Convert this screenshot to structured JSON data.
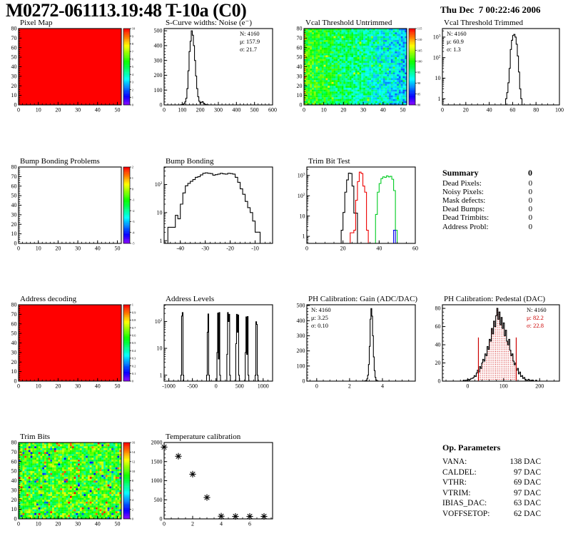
{
  "header": {
    "title": "M0272-061113.19:48 T-10a (C0)",
    "datetime": "Thu Dec  7 00:22:46 2006"
  },
  "summary": {
    "title": "Summary",
    "value": "0",
    "rows": [
      {
        "label": "Dead Pixels:",
        "value": "0"
      },
      {
        "label": "Noisy Pixels:",
        "value": "0"
      },
      {
        "label": "Mask defects:",
        "value": "0"
      },
      {
        "label": "Dead Bumps:",
        "value": "0"
      },
      {
        "label": "Dead Trimbits:",
        "value": "0"
      },
      {
        "label": "Address Probl:",
        "value": "0"
      }
    ]
  },
  "op_parameters": {
    "title": "Op. Parameters",
    "rows": [
      {
        "label": "VANA:",
        "value": "138 DAC"
      },
      {
        "label": "CALDEL:",
        "value": "97 DAC"
      },
      {
        "label": "VTHR:",
        "value": "69 DAC"
      },
      {
        "label": "VTRIM:",
        "value": "97 DAC"
      },
      {
        "label": "IBIAS_DAC:",
        "value": "63 DAC"
      },
      {
        "label": "VOFFSETOP:",
        "value": "62 DAC"
      }
    ]
  },
  "chart_data": [
    {
      "name": "pixel-map",
      "title": "Pixel Map",
      "type": "heatmap",
      "col": 0,
      "fill": "uniform",
      "x": {
        "min": 0,
        "max": 52,
        "major": [
          0,
          10,
          20,
          30,
          40,
          50
        ],
        "minor": 2
      },
      "y": {
        "min": 0,
        "max": 80,
        "major": [
          0,
          10,
          20,
          30,
          40,
          50,
          60,
          70,
          80
        ],
        "minor": 2
      },
      "z": {
        "min": 0,
        "max": 10,
        "step": 1
      },
      "uniform_value": 10
    },
    {
      "name": "scurve-noise",
      "title": "S-Curve widths: Noise (e⁻)",
      "type": "hist",
      "col": 1,
      "x": {
        "min": 0,
        "max": 600,
        "major": [
          0,
          100,
          200,
          300,
          400,
          500,
          600
        ],
        "minor": 20
      },
      "y": {
        "min": 0,
        "max": 515,
        "major": [
          0,
          100,
          200,
          300,
          400,
          500
        ],
        "minor": 20
      },
      "stats": {
        "pos": "tr",
        "lines": [
          {
            "t": "N: 4160",
            "c": "#000000"
          },
          {
            "t": "μ: 157.9",
            "c": "#000000"
          },
          {
            "t": "σ: 21.7",
            "c": "#000000"
          }
        ]
      },
      "series": [
        {
          "color": "#000000",
          "segments": [
            {
              "x0": 90,
              "bw": 6,
              "counts": [
                1,
                2,
                4,
                8,
                20,
                45,
                110,
                230,
                360,
                430,
                500,
                470,
                400,
                300,
                195,
                110,
                55,
                25,
                12,
                18,
                22,
                12,
                6,
                3,
                1,
                1
              ]
            }
          ]
        }
      ]
    },
    {
      "name": "vcal-untrimmed",
      "title": "Vcal Threshold Untrimmed",
      "type": "heatmap",
      "col": 2,
      "fill": "noise",
      "seed": 20061207,
      "x": {
        "min": 0,
        "max": 52,
        "major": [
          0,
          10,
          20,
          30,
          40,
          50
        ],
        "minor": 2
      },
      "y": {
        "min": 0,
        "max": 80,
        "major": [
          0,
          10,
          20,
          30,
          40,
          50,
          60,
          70,
          80
        ],
        "minor": 2
      },
      "z": {
        "min": 80,
        "max": 115,
        "step": 5
      }
    },
    {
      "name": "vcal-trimmed",
      "title": "Vcal Threshold Trimmed",
      "type": "hist",
      "col": 3,
      "x": {
        "min": 0,
        "max": 100,
        "major": [
          0,
          20,
          40,
          60,
          80,
          100
        ],
        "minor": 5
      },
      "y": {
        "log": true,
        "min": 0.5,
        "max": 2600
      },
      "stats": {
        "pos": "tl",
        "lines": [
          {
            "t": "N: 4160",
            "c": "#000000"
          },
          {
            "t": "μ: 60.9",
            "c": "#000000"
          },
          {
            "t": "σ: 1.3",
            "c": "#000000"
          }
        ]
      },
      "series": [
        {
          "color": "#000000",
          "segments": [
            {
              "x0": 54,
              "bw": 1,
              "counts": [
                1,
                2,
                6,
                30,
                250,
                700,
                1200,
                1350,
                1000,
                450,
                120,
                20,
                3,
                1
              ]
            }
          ]
        }
      ]
    },
    {
      "name": "bump-problems",
      "title": "Bump Bonding Problems",
      "type": "heatmap",
      "col": 0,
      "fill": "none",
      "x": {
        "min": 0,
        "max": 52,
        "major": [
          0,
          10,
          20,
          30,
          40,
          50
        ],
        "minor": 2
      },
      "y": {
        "min": 0,
        "max": 80,
        "major": [
          0,
          10,
          20,
          30,
          40,
          50,
          60,
          70,
          80
        ],
        "minor": 2
      },
      "z": {
        "min": -5,
        "max": 2,
        "step": 1
      }
    },
    {
      "name": "bump-bonding",
      "title": "Bump Bonding",
      "type": "hist",
      "col": 1,
      "x": {
        "min": -46.5,
        "max": -3,
        "major": [
          -40,
          -30,
          -20,
          -10
        ],
        "minor": 2
      },
      "y": {
        "log": true,
        "min": 0.8,
        "max": 420
      },
      "series": [
        {
          "color": "#000000",
          "segments": [
            {
              "x0": -45,
              "bw": 1,
              "counts": [
                3,
                3,
                3,
                8,
                6,
                20,
                50,
                90,
                110,
                130,
                150,
                180,
                190,
                220,
                250,
                260,
                250,
                245,
                215,
                225,
                235,
                250,
                240,
                235,
                250,
                245,
                235,
                180,
                120,
                70,
                45,
                25,
                15,
                10,
                5,
                2,
                2
              ]
            }
          ]
        }
      ]
    },
    {
      "name": "trim-bit-test",
      "title": "Trim Bit Test",
      "type": "hist",
      "col": 2,
      "x": {
        "min": 0,
        "max": 60,
        "major": [
          0,
          20,
          40,
          60
        ],
        "minor": 5
      },
      "y": {
        "log": true,
        "min": 0.45,
        "max": 2600
      },
      "series": [
        {
          "color": "#000000",
          "baseline": [
            0,
            60
          ],
          "segments": [
            {
              "x0": 19,
              "bw": 1,
              "counts": [
                2,
                15,
                150,
                600,
                1300,
                1250,
                300,
                14,
                14
              ]
            }
          ]
        },
        {
          "color": "#ee0000",
          "baseline": [
            0,
            60
          ],
          "segments": [
            {
              "x0": 24,
              "bw": 1,
              "counts": [
                1.5,
                1.5,
                2,
                60,
                500,
                1450,
                1250,
                300,
                150,
                2
              ]
            }
          ]
        },
        {
          "color": "#00cc22",
          "baseline": [
            0,
            60
          ],
          "segments": [
            {
              "x0": 38,
              "bw": 1,
              "counts": [
                12,
                150,
                400,
                700,
                850,
                800,
                950,
                850,
                900,
                650,
                180,
                2
              ]
            }
          ]
        },
        {
          "color": "#0000ee",
          "segments": [
            {
              "x0": 48,
              "bw": 1,
              "counts": [
                2
              ]
            }
          ]
        }
      ]
    },
    {
      "name": "address-decoding",
      "title": "Address decoding",
      "type": "heatmap",
      "col": 0,
      "fill": "uniform",
      "x": {
        "min": 0,
        "max": 52,
        "major": [
          0,
          10,
          20,
          30,
          40,
          50
        ],
        "minor": 2
      },
      "y": {
        "min": 0,
        "max": 80,
        "major": [
          0,
          10,
          20,
          30,
          40,
          50,
          60,
          70,
          80
        ],
        "minor": 2
      },
      "z": {
        "min": 0,
        "max": 1,
        "step": 0.1
      },
      "uniform_value": 1
    },
    {
      "name": "address-levels",
      "title": "Address Levels",
      "type": "hist",
      "col": 1,
      "x": {
        "min": -1100,
        "max": 1200,
        "major": [
          -1000,
          -500,
          0,
          500,
          1000
        ],
        "minor": 100
      },
      "y": {
        "log": true,
        "min": 0.6,
        "max": 420
      },
      "series": [
        {
          "color": "#000000",
          "segments": [
            {
              "x0": -745,
              "bw": 15,
              "counts": [
                1,
                160,
                215,
                1
              ]
            },
            {
              "x0": -200,
              "bw": 15,
              "counts": [
                1,
                40,
                190,
                1
              ]
            },
            {
              "x0": 20,
              "bw": 15,
              "counts": [
                7,
                205,
                4,
                215,
                1
              ]
            },
            {
              "x0": 230,
              "bw": 15,
              "counts": [
                6,
                215,
                100,
                185,
                1
              ]
            },
            {
              "x0": 420,
              "bw": 15,
              "counts": [
                15,
                185,
                40,
                175,
                1
              ]
            },
            {
              "x0": 620,
              "bw": 15,
              "counts": [
                7,
                148,
                6,
                152,
                1
              ]
            },
            {
              "x0": 830,
              "bw": 15,
              "counts": [
                1,
                98,
                78,
                1
              ]
            }
          ]
        }
      ]
    },
    {
      "name": "ph-gain",
      "title": "PH Calibration: Gain (ADC/DAC)",
      "type": "hist",
      "col": 2,
      "x": {
        "min": -0.6,
        "max": 6.0,
        "major": [
          0,
          2,
          4
        ],
        "minor": 0.4
      },
      "y": {
        "min": 0,
        "max": 505,
        "major": [
          0,
          100,
          200,
          300,
          400,
          500
        ],
        "minor": 20
      },
      "stats": {
        "pos": "tl",
        "lines": [
          {
            "t": "N: 4160",
            "c": "#000000"
          },
          {
            "t": "μ: 3.25",
            "c": "#000000"
          },
          {
            "t": "σ: 0.10",
            "c": "#000000"
          }
        ]
      },
      "series": [
        {
          "color": "#000000",
          "segments": [
            {
              "x0": 2.9,
              "bw": 0.05,
              "counts": [
                1,
                2,
                5,
                15,
                40,
                110,
                230,
                410,
                480,
                430,
                300,
                160,
                70,
                25,
                8,
                3,
                1
              ]
            }
          ]
        }
      ]
    },
    {
      "name": "ph-pedestal",
      "title": "PH Calibration: Pedestal (DAC)",
      "type": "hist",
      "col": 3,
      "x": {
        "min": -70,
        "max": 255,
        "major": [
          0,
          100,
          200
        ],
        "minor": 20
      },
      "y": {
        "min": 0,
        "max": 84,
        "major": [
          0,
          20,
          40,
          60,
          80
        ],
        "minor": 4
      },
      "stats": {
        "pos": "tr",
        "lines": [
          {
            "t": "N: 4160",
            "c": "#000000"
          },
          {
            "t": "μ: 82.2",
            "c": "#cc0000"
          },
          {
            "t": "σ: 22.8",
            "c": "#cc0000"
          }
        ]
      },
      "overlay": {
        "from": 30,
        "to": 135,
        "line_height": 48,
        "color": "#cc0000"
      },
      "series": [
        {
          "color": "#000000",
          "segments": [
            {
              "x0": -12,
              "bw": 3,
              "counts": [
                1,
                0,
                1,
                1,
                2,
                1,
                2,
                3,
                3,
                4,
                6,
                5,
                9,
                12,
                10,
                16,
                14,
                20,
                24,
                22,
                30,
                28,
                38,
                35,
                46,
                44,
                58,
                52,
                66,
                60,
                72,
                80,
                68,
                76,
                62,
                70,
                58,
                64,
                50,
                56,
                44,
                40,
                46,
                34,
                28,
                30,
                22,
                18,
                20,
                12,
                14,
                8,
                10,
                5,
                6,
                3,
                4,
                2,
                1,
                1,
                2,
                1,
                0,
                1,
                1,
                0,
                0,
                1
              ]
            }
          ]
        }
      ]
    },
    {
      "name": "trim-bits",
      "title": "Trim Bits",
      "type": "heatmap",
      "col": 0,
      "fill": "noise",
      "seed": 6111319,
      "x": {
        "min": 0,
        "max": 52,
        "major": [
          0,
          10,
          20,
          30,
          40,
          50
        ],
        "minor": 2
      },
      "y": {
        "min": 0,
        "max": 80,
        "major": [
          0,
          10,
          20,
          30,
          40,
          50,
          60,
          70,
          80
        ],
        "minor": 2
      },
      "z": {
        "min": 0,
        "max": 16,
        "step": 2
      }
    },
    {
      "name": "temperature",
      "title": "Temperature calibration",
      "type": "scatter",
      "col": 1,
      "x": {
        "min": 0,
        "max": 7.6,
        "major": [
          0,
          2,
          4,
          6
        ],
        "minor": 0.5
      },
      "y": {
        "min": 0,
        "max": 2000,
        "major": [
          0,
          500,
          1000,
          1500,
          2000
        ],
        "minor": 100
      },
      "points": [
        [
          0,
          1880
        ],
        [
          1,
          1640
        ],
        [
          2,
          1170
        ],
        [
          3,
          560
        ],
        [
          4,
          70
        ],
        [
          5,
          65
        ],
        [
          6,
          65
        ],
        [
          7,
          65
        ]
      ]
    }
  ]
}
